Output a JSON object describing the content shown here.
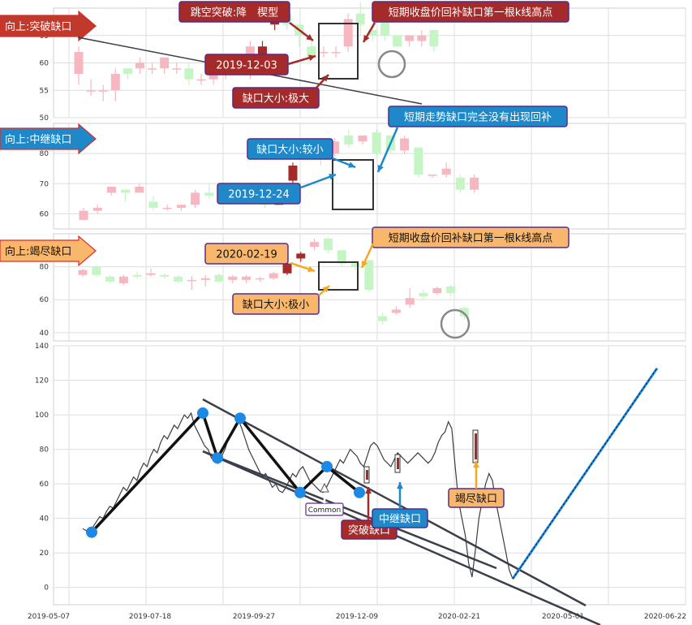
{
  "colors": {
    "up_candle": "#f7b7c0",
    "down_candle": "#c5f5c5",
    "gap_candle": "#a52a2a",
    "red_badge": "#a52a2a",
    "blue_badge": "#1e88c8",
    "orange_badge": "#f9b76b",
    "badge_border": "#5b2a86",
    "grid": "#dddddd",
    "trendline": "#3a3f4a",
    "pivot": "#1e88e5",
    "projection": "#1e88e5"
  },
  "x_dates": [
    "2019-05-07",
    "2019-07-18",
    "2019-09-27",
    "2019-12-09",
    "2020-02-21",
    "2020-05-01",
    "2020-06-22"
  ],
  "chart_data": [
    {
      "type": "candlestick",
      "name": "panel-breakaway",
      "ylim": [
        50,
        70
      ],
      "yticks": [
        50,
        55,
        60,
        65
      ],
      "tag": "向上:突破缺口",
      "annotations": {
        "pattern": "跳空突破:降　楔型",
        "date": "2019-12-03",
        "gap_size": "缺口大小:极大",
        "fill_note": "短期收盘价回补缺口第一根k线高点"
      },
      "candles": [
        {
          "o": 58,
          "c": 62,
          "h": 63,
          "l": 56
        },
        {
          "o": 55,
          "c": 55,
          "h": 57,
          "l": 54
        },
        {
          "o": 55,
          "c": 55,
          "h": 56,
          "l": 53
        },
        {
          "o": 55,
          "c": 58,
          "h": 59,
          "l": 53
        },
        {
          "o": 59,
          "c": 58,
          "h": 59,
          "l": 57
        },
        {
          "o": 59,
          "c": 60,
          "h": 61,
          "l": 58
        },
        {
          "o": 59,
          "c": 59,
          "h": 60,
          "l": 58
        },
        {
          "o": 59,
          "c": 61,
          "h": 61,
          "l": 58
        },
        {
          "o": 59,
          "c": 59,
          "h": 60,
          "l": 58
        },
        {
          "o": 59,
          "c": 57,
          "h": 60,
          "l": 56
        },
        {
          "o": 57,
          "c": 57,
          "h": 58,
          "l": 56
        },
        {
          "o": 57,
          "c": 59,
          "h": 60,
          "l": 56
        },
        {
          "o": 58,
          "c": 59,
          "h": 61,
          "l": 57
        },
        {
          "o": 59,
          "c": 59,
          "h": 60,
          "l": 58
        },
        {
          "o": 58,
          "c": 63,
          "h": 64,
          "l": 57
        },
        {
          "o": 61,
          "c": 63,
          "h": 64,
          "l": 60,
          "gap": true
        },
        {
          "o": 67,
          "c": 69,
          "h": 70,
          "l": 66,
          "gap": true
        },
        {
          "o": 69,
          "c": 67,
          "h": 70,
          "l": 66
        },
        {
          "o": 67,
          "c": 65,
          "h": 67,
          "l": 63
        },
        {
          "o": 63,
          "c": 61,
          "h": 64,
          "l": 61
        },
        {
          "o": 62,
          "c": 62,
          "h": 63,
          "l": 61
        },
        {
          "o": 62,
          "c": 62,
          "h": 63,
          "l": 61
        },
        {
          "o": 63,
          "c": 68,
          "h": 69,
          "l": 62
        },
        {
          "o": 69,
          "c": 67,
          "h": 71,
          "l": 65
        },
        {
          "o": 66,
          "c": 65,
          "h": 67,
          "l": 64
        },
        {
          "o": 68,
          "c": 65,
          "h": 69,
          "l": 64
        },
        {
          "o": 65,
          "c": 63,
          "h": 65,
          "l": 63
        },
        {
          "o": 64,
          "c": 65,
          "h": 65,
          "l": 63
        },
        {
          "o": 64,
          "c": 65,
          "h": 66,
          "l": 63
        },
        {
          "o": 66,
          "c": 63,
          "h": 66,
          "l": 62
        }
      ]
    },
    {
      "type": "candlestick",
      "name": "panel-runaway",
      "ylim": [
        55,
        90
      ],
      "yticks": [
        60,
        70,
        80
      ],
      "tag": "向上:中继缺口",
      "annotations": {
        "gap_size": "缺口大小:较小",
        "date": "2019-12-24",
        "note": "短期走势缺口完全没有出现回补"
      },
      "candles": [
        {
          "o": 58,
          "c": 61,
          "h": 62,
          "l": 58
        },
        {
          "o": 61,
          "c": 62,
          "h": 63,
          "l": 60
        },
        {
          "o": 67,
          "c": 69,
          "h": 69,
          "l": 66
        },
        {
          "o": 68,
          "c": 67,
          "h": 68,
          "l": 64
        },
        {
          "o": 67,
          "c": 69,
          "h": 70,
          "l": 67
        },
        {
          "o": 64,
          "c": 62,
          "h": 66,
          "l": 61
        },
        {
          "o": 62,
          "c": 62,
          "h": 63,
          "l": 61
        },
        {
          "o": 62,
          "c": 63,
          "h": 63,
          "l": 61
        },
        {
          "o": 63,
          "c": 67,
          "h": 68,
          "l": 62
        },
        {
          "o": 67,
          "c": 66,
          "h": 70,
          "l": 65
        },
        {
          "o": 66,
          "c": 66,
          "h": 67,
          "l": 64
        },
        {
          "o": 66,
          "c": 66,
          "h": 67,
          "l": 65
        },
        {
          "o": 65,
          "c": 65,
          "h": 66,
          "l": 64
        },
        {
          "o": 66,
          "c": 63,
          "h": 67,
          "l": 62
        },
        {
          "o": 63,
          "c": 68,
          "h": 68,
          "l": 63,
          "gap": true
        },
        {
          "o": 71,
          "c": 76,
          "h": 77,
          "l": 70,
          "gap": true
        },
        {
          "o": 80,
          "c": 83,
          "h": 84,
          "l": 79
        },
        {
          "o": 81,
          "c": 78,
          "h": 81,
          "l": 76
        },
        {
          "o": 80,
          "c": 84,
          "h": 85,
          "l": 79
        },
        {
          "o": 86,
          "c": 83,
          "h": 88,
          "l": 82
        },
        {
          "o": 84,
          "c": 86,
          "h": 86,
          "l": 83
        },
        {
          "o": 87,
          "c": 80,
          "h": 88,
          "l": 79
        },
        {
          "o": 86,
          "c": 81,
          "h": 86,
          "l": 80
        },
        {
          "o": 81,
          "c": 85,
          "h": 86,
          "l": 80
        },
        {
          "o": 82,
          "c": 73,
          "h": 82,
          "l": 72
        },
        {
          "o": 73,
          "c": 73,
          "h": 73,
          "l": 72
        },
        {
          "o": 73,
          "c": 75,
          "h": 77,
          "l": 72
        },
        {
          "o": 72,
          "c": 68,
          "h": 73,
          "l": 67
        },
        {
          "o": 68,
          "c": 72,
          "h": 73,
          "l": 67
        }
      ]
    },
    {
      "type": "candlestick",
      "name": "panel-exhaustion",
      "ylim": [
        35,
        100
      ],
      "yticks": [
        40,
        60,
        80
      ],
      "tag": "向上:竭尽缺口",
      "annotations": {
        "date": "2020-02-19",
        "gap_size": "缺口大小:极小",
        "fill_note": "短期收盘价回补缺口第一根k线高点"
      },
      "candles": [
        {
          "o": 75,
          "c": 78,
          "h": 79,
          "l": 74
        },
        {
          "o": 80,
          "c": 75,
          "h": 81,
          "l": 74
        },
        {
          "o": 74,
          "c": 71,
          "h": 75,
          "l": 70
        },
        {
          "o": 70,
          "c": 74,
          "h": 75,
          "l": 69
        },
        {
          "o": 75,
          "c": 74,
          "h": 77,
          "l": 73
        },
        {
          "o": 75,
          "c": 76,
          "h": 79,
          "l": 74
        },
        {
          "o": 75,
          "c": 74,
          "h": 76,
          "l": 73
        },
        {
          "o": 74,
          "c": 71,
          "h": 75,
          "l": 70
        },
        {
          "o": 72,
          "c": 72,
          "h": 74,
          "l": 66
        },
        {
          "o": 72,
          "c": 73,
          "h": 75,
          "l": 68
        },
        {
          "o": 75,
          "c": 71,
          "h": 76,
          "l": 70
        },
        {
          "o": 72,
          "c": 74,
          "h": 75,
          "l": 70
        },
        {
          "o": 72,
          "c": 74,
          "h": 75,
          "l": 70
        },
        {
          "o": 73,
          "c": 73,
          "h": 74,
          "l": 71
        },
        {
          "o": 73,
          "c": 76,
          "h": 77,
          "l": 72
        },
        {
          "o": 76,
          "c": 82,
          "h": 83,
          "l": 75,
          "gap": true
        },
        {
          "o": 85,
          "c": 88,
          "h": 89,
          "l": 83,
          "gap": true
        },
        {
          "o": 92,
          "c": 95,
          "h": 97,
          "l": 90
        },
        {
          "o": 97,
          "c": 90,
          "h": 98,
          "l": 88
        },
        {
          "o": 90,
          "c": 82,
          "h": 90,
          "l": 80
        },
        {
          "o": 82,
          "c": 80,
          "h": 83,
          "l": 78
        },
        {
          "o": 84,
          "c": 66,
          "h": 84,
          "l": 65
        },
        {
          "o": 50,
          "c": 47,
          "h": 52,
          "l": 45
        },
        {
          "o": 52,
          "c": 54,
          "h": 56,
          "l": 51
        },
        {
          "o": 57,
          "c": 61,
          "h": 67,
          "l": 55
        },
        {
          "o": 64,
          "c": 62,
          "h": 66,
          "l": 60
        },
        {
          "o": 64,
          "c": 67,
          "h": 68,
          "l": 63
        },
        {
          "o": 68,
          "c": 64,
          "h": 69,
          "l": 62
        },
        {
          "o": 55,
          "c": 50,
          "h": 56,
          "l": 48
        }
      ]
    },
    {
      "type": "line",
      "name": "panel-overview",
      "ylim": [
        -10,
        140
      ],
      "yticks": [
        0,
        20,
        40,
        60,
        80,
        100,
        120,
        140
      ],
      "labels": {
        "common": "Common",
        "breakaway": "突破缺口",
        "runaway": "中继缺口",
        "exhaustion": "竭尽缺口"
      },
      "price": [
        34,
        33,
        32,
        35,
        38,
        41,
        40,
        44,
        47,
        46,
        50,
        54,
        58,
        56,
        60,
        64,
        62,
        68,
        72,
        70,
        76,
        80,
        78,
        84,
        88,
        86,
        90,
        94,
        92,
        96,
        100,
        98,
        101,
        94,
        90,
        86,
        82,
        80,
        75,
        78,
        72,
        76,
        80,
        86,
        90,
        94,
        97,
        92,
        86,
        80,
        76,
        72,
        68,
        64,
        66,
        62,
        58,
        60,
        56,
        55,
        58,
        62,
        66,
        64,
        68,
        70,
        66,
        62,
        60,
        58,
        56,
        55,
        58,
        62,
        66,
        70,
        74,
        72,
        76,
        80,
        78,
        76,
        72,
        70,
        76,
        82,
        84,
        82,
        78,
        74,
        72,
        70,
        74,
        78,
        76,
        74,
        72,
        74,
        76,
        78,
        76,
        74,
        72,
        74,
        78,
        84,
        88,
        90,
        96,
        92,
        70,
        50,
        40,
        30,
        14,
        6,
        22,
        40,
        50,
        60,
        66,
        62,
        50,
        40,
        30,
        20,
        10,
        5
      ],
      "pivots": [
        [
          0,
          32
        ],
        [
          1,
          101
        ],
        [
          1.5,
          75
        ],
        [
          2,
          98
        ],
        [
          3,
          55
        ],
        [
          4,
          70
        ],
        [
          5,
          55
        ]
      ],
      "projection": {
        "from": [
          0,
          5
        ],
        "to": [
          1,
          127
        ]
      }
    }
  ]
}
